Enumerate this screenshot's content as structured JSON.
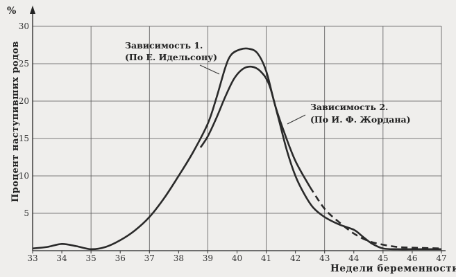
{
  "chart_data": {
    "type": "line",
    "title": "",
    "xlabel": "Недели беременности",
    "ylabel": "Процент наступивших родов",
    "y_unit": "%",
    "xlim": [
      33,
      47
    ],
    "ylim": [
      0,
      30
    ],
    "x_ticks": [
      "33",
      "34",
      "35",
      "36",
      "37",
      "38",
      "39",
      "40",
      "41",
      "42",
      "43",
      "44",
      "45",
      "46",
      "47"
    ],
    "y_ticks": [
      "5",
      "10",
      "15",
      "20",
      "25",
      "30"
    ],
    "grid": true,
    "series": [
      {
        "name": "Зависимость 1.",
        "source": "(По Е. Идельсону)",
        "style": "solid-then-dashed",
        "points": [
          [
            33,
            0.3
          ],
          [
            33.5,
            0.5
          ],
          [
            34,
            0.9
          ],
          [
            34.5,
            0.6
          ],
          [
            35,
            0.2
          ],
          [
            35.5,
            0.5
          ],
          [
            36,
            1.4
          ],
          [
            36.5,
            2.7
          ],
          [
            37,
            4.5
          ],
          [
            37.5,
            7
          ],
          [
            38,
            10
          ],
          [
            38.5,
            13.2
          ],
          [
            39,
            17
          ],
          [
            39.3,
            20.5
          ],
          [
            39.6,
            24.5
          ],
          [
            39.8,
            26.2
          ],
          [
            40.1,
            26.9
          ],
          [
            40.4,
            27
          ],
          [
            40.7,
            26.4
          ],
          [
            41,
            24
          ],
          [
            41.3,
            19.5
          ],
          [
            41.6,
            16
          ],
          [
            42,
            12
          ],
          [
            42.5,
            8.5
          ],
          [
            43,
            5.6
          ],
          [
            43.5,
            3.8
          ],
          [
            44,
            2.3
          ],
          [
            44.5,
            1.3
          ],
          [
            45,
            0.8
          ],
          [
            45.5,
            0.5
          ],
          [
            46,
            0.4
          ],
          [
            47,
            0.3
          ]
        ],
        "dashed_from": 42.1
      },
      {
        "name": "Зависимость 2.",
        "source": "(По И. Ф. Жордана)",
        "style": "solid",
        "points": [
          [
            38.75,
            13.8
          ],
          [
            39,
            15.3
          ],
          [
            39.3,
            17.8
          ],
          [
            39.6,
            20.6
          ],
          [
            39.9,
            23
          ],
          [
            40.2,
            24.3
          ],
          [
            40.5,
            24.6
          ],
          [
            40.8,
            24
          ],
          [
            41.1,
            22.2
          ],
          [
            41.4,
            18
          ],
          [
            41.7,
            13.5
          ],
          [
            42,
            10
          ],
          [
            42.3,
            7.6
          ],
          [
            42.6,
            5.8
          ],
          [
            43,
            4.5
          ],
          [
            43.5,
            3.5
          ],
          [
            44,
            2.8
          ],
          [
            44.3,
            1.9
          ],
          [
            44.6,
            1
          ],
          [
            45,
            0.3
          ],
          [
            45.5,
            0.2
          ],
          [
            46,
            0.2
          ],
          [
            47,
            0.2
          ]
        ]
      }
    ]
  }
}
